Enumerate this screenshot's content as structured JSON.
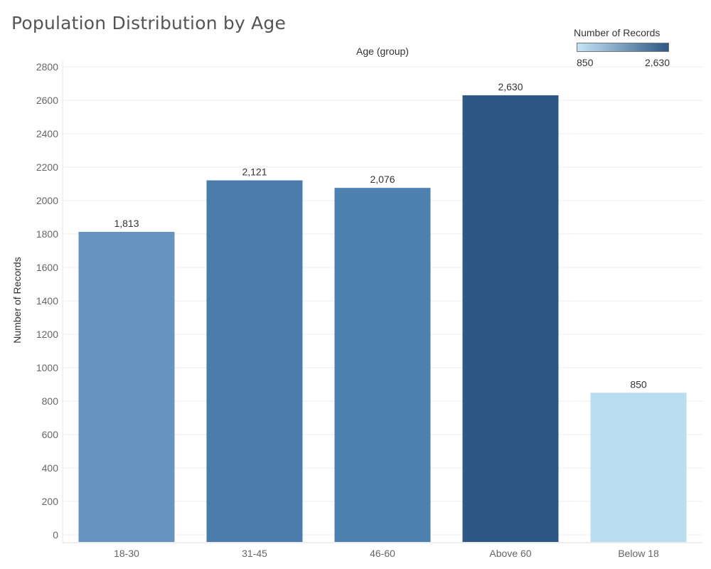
{
  "chart_data": {
    "type": "bar",
    "title": "Population Distribution by Age",
    "xlabel": "Age (group)",
    "ylabel": "Number of Records",
    "categories": [
      "18-30",
      "31-45",
      "46-60",
      "Above 60",
      "Below 18"
    ],
    "values": [
      1813,
      2121,
      2076,
      2630,
      850
    ],
    "value_labels": [
      "1,813",
      "2,121",
      "2,076",
      "2,630",
      "850"
    ],
    "bar_colors": [
      "#6595bf",
      "#4c7cab",
      "#4f81b0",
      "#2d5884",
      "#b8dcf0"
    ],
    "ylim": [
      0,
      2800
    ],
    "yticks": [
      0,
      200,
      400,
      600,
      800,
      1000,
      1200,
      1400,
      1600,
      1800,
      2000,
      2200,
      2400,
      2600,
      2800
    ],
    "grid": true,
    "legend": {
      "title": "Number of Records",
      "type": "color-gradient",
      "min_label": "850",
      "max_label": "2,630",
      "color_low": "#c6e4f5",
      "color_high": "#2d5884",
      "placement": "top-right"
    }
  }
}
